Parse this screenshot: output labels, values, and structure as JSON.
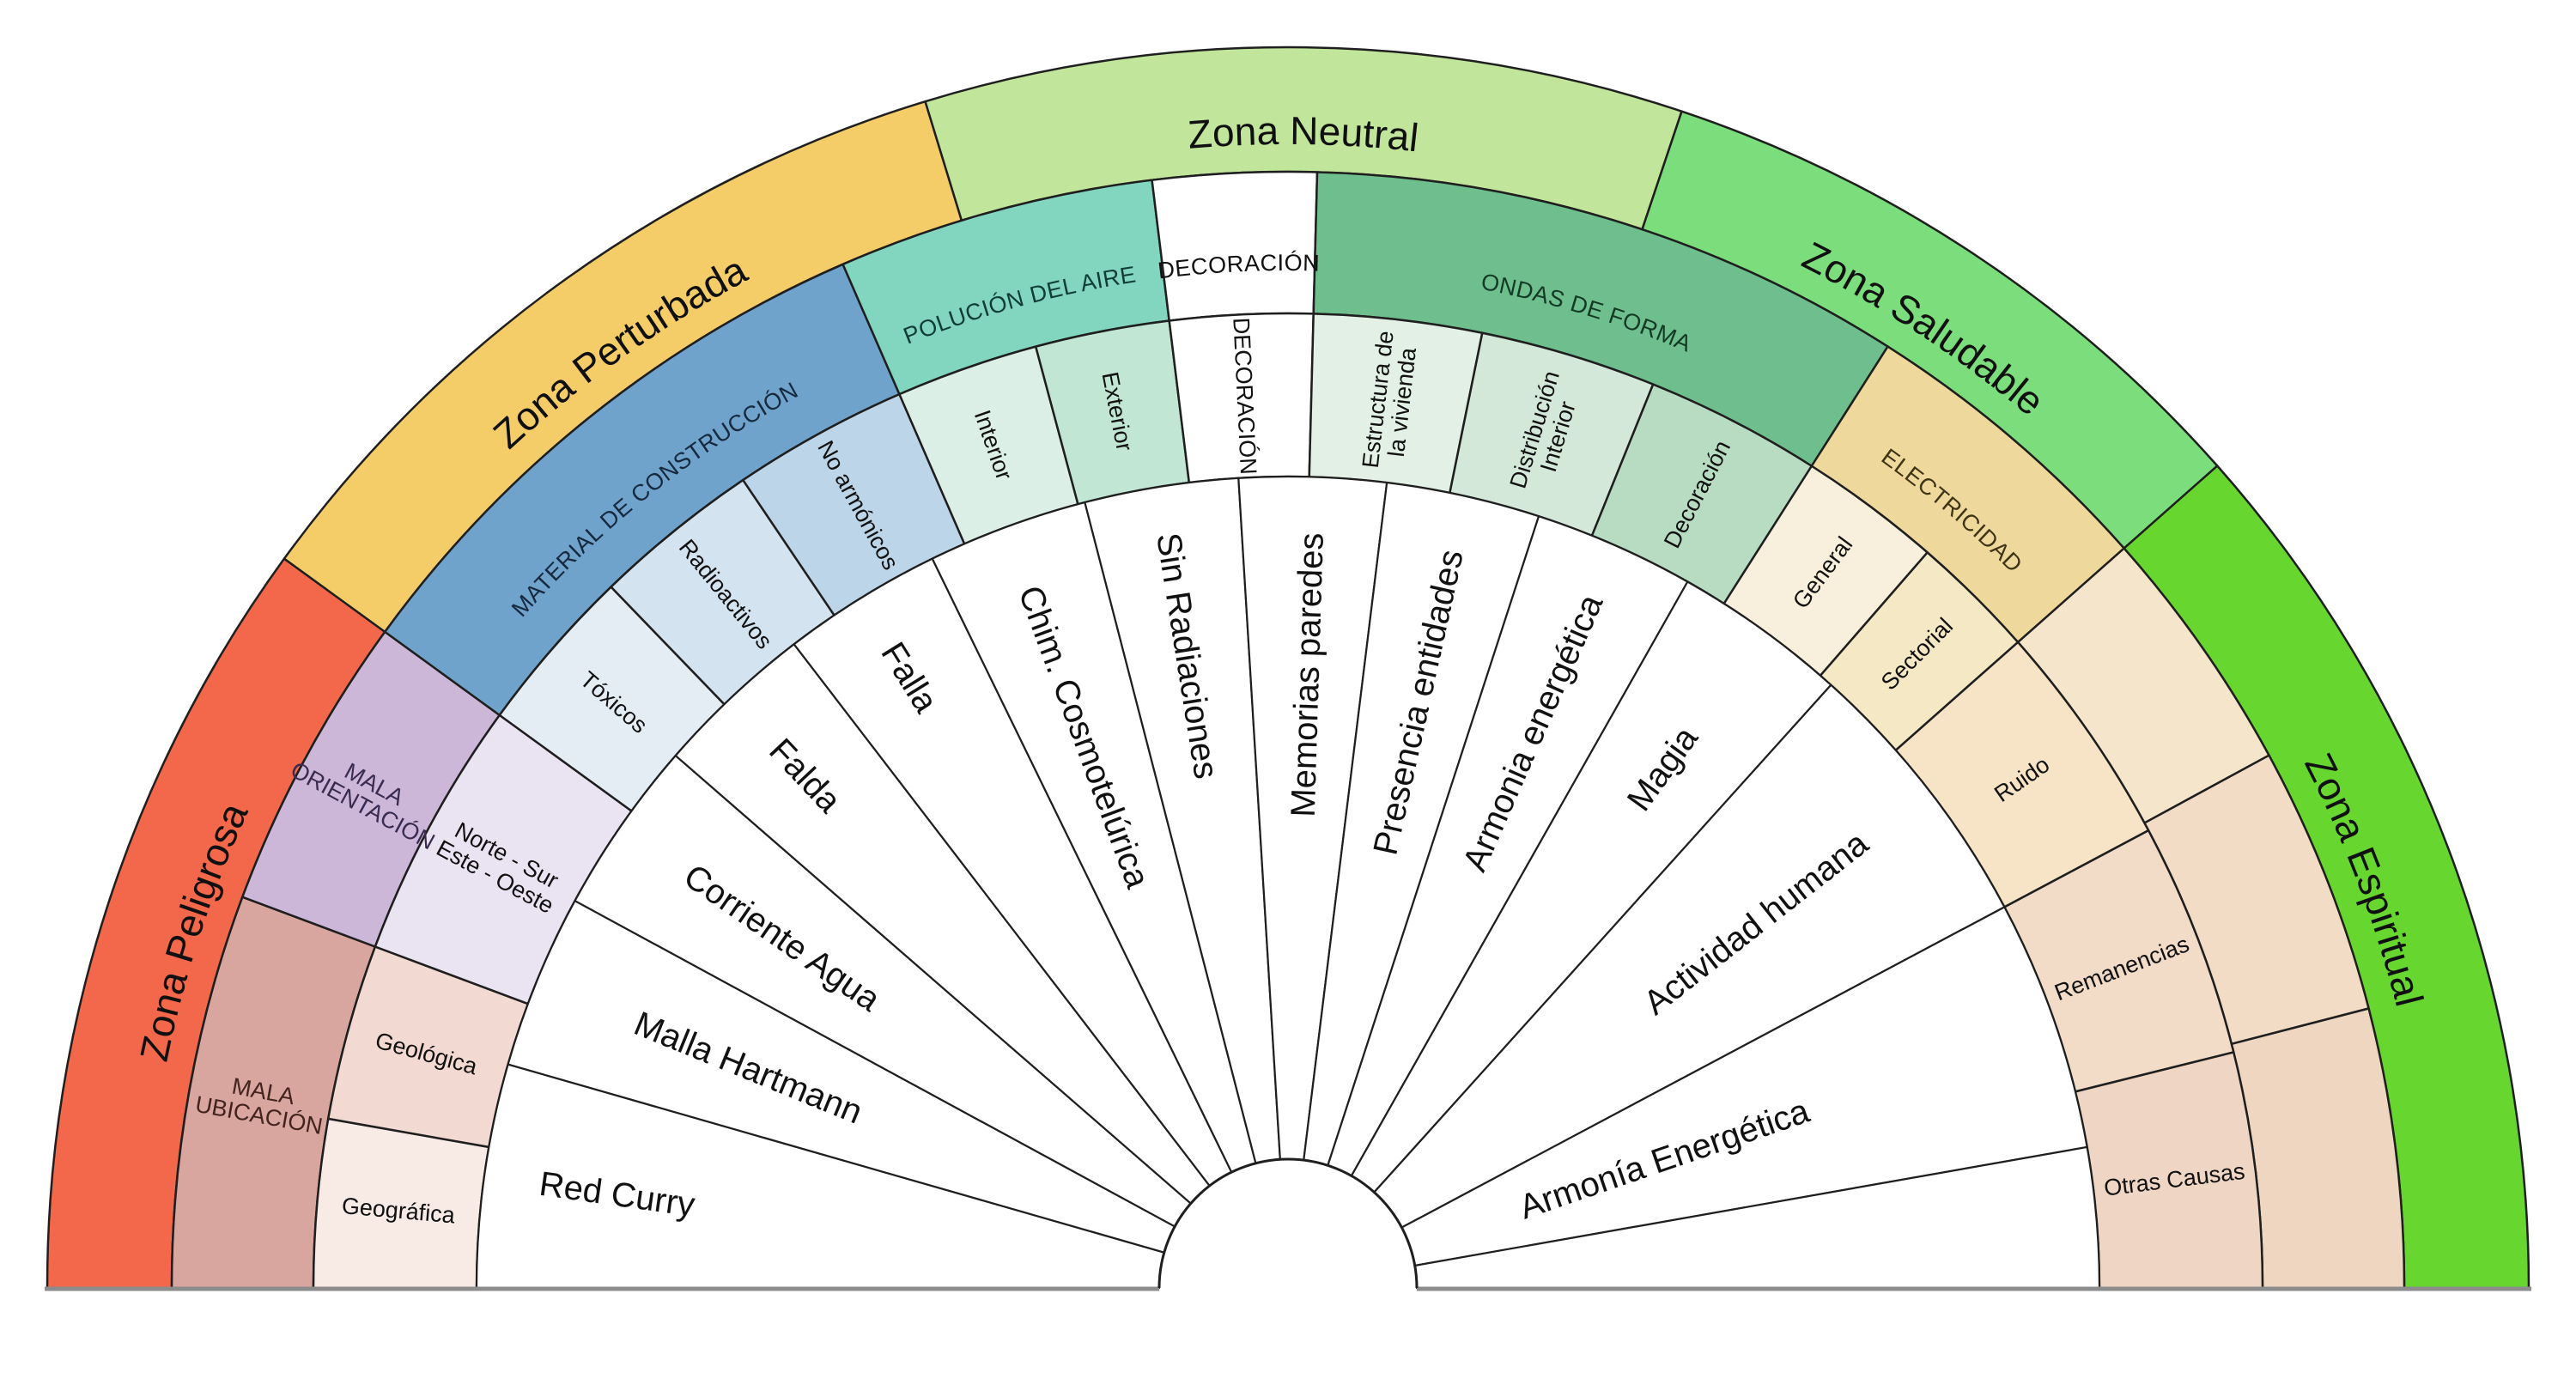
{
  "canvas": {
    "background": "#ffffff",
    "stroke": "#1f1f1f",
    "baseline_color": "#8c8c8c",
    "spoke_fill": "#ffffff"
  },
  "wheel": {
    "zones": [
      {
        "label": "Zona Peligrosa",
        "a1": 180,
        "a2": 144,
        "color": "#f3684a",
        "text": "#101010"
      },
      {
        "label": "Zona Perturbada",
        "a1": 144,
        "a2": 107,
        "color": "#f4cc68",
        "text": "#101010"
      },
      {
        "label": "Zona Neutral",
        "a1": 107,
        "a2": 71.5,
        "color": "#c1e59b",
        "text": "#101010"
      },
      {
        "label": "Zona Saludable",
        "a1": 71.5,
        "a2": 41.5,
        "color": "#7cdd7c",
        "text": "#101010"
      },
      {
        "label": "Zona Espiritual",
        "a1": 41.5,
        "a2": 0,
        "color": "#67d62f",
        "text": "#101010"
      }
    ],
    "categories": [
      {
        "label": "MALA UBICACIÓN",
        "lines": [
          "MALA",
          "UBICACIÓN"
        ],
        "a1": 180,
        "a2": 159.5,
        "color": "#d8a69e",
        "text": "#43231e",
        "mode": "radial"
      },
      {
        "label": "MALA ORIENTACIÓN",
        "lines": [
          "MALA",
          "ORIENTACIÓN"
        ],
        "a1": 159.5,
        "a2": 144,
        "color": "#ccb7d9",
        "text": "#3a2b50",
        "mode": "radial"
      },
      {
        "label": "MATERIAL DE CONSTRUCCIÓN",
        "a1": 144,
        "a2": 113.5,
        "color": "#6fa3cb",
        "text": "#16293f",
        "mode": "arc"
      },
      {
        "label": "POLUCIÓN DEL AIRE",
        "a1": 113.5,
        "a2": 97,
        "color": "#82d5bf",
        "text": "#0f3d35",
        "mode": "arc"
      },
      {
        "label": "DECORACIÓN",
        "a1": 97,
        "a2": 88.5,
        "color": "#ffffff",
        "text": "#111111",
        "mode": "arc"
      },
      {
        "label": "ONDAS DE FORMA",
        "a1": 88.5,
        "a2": 57.5,
        "color": "#6fbe8d",
        "text": "#123a24",
        "mode": "arc"
      },
      {
        "label": "ELECTRICIDAD",
        "a1": 57.5,
        "a2": 41.5,
        "color": "#eed89b",
        "text": "#3e3416",
        "mode": "arc"
      },
      {
        "label": "",
        "a1": 41.5,
        "a2": 28.5,
        "color": "#f5e5cb",
        "mode": "none"
      },
      {
        "label": "",
        "a1": 28.5,
        "a2": 14.5,
        "color": "#f2dcc5",
        "mode": "none"
      },
      {
        "label": "",
        "a1": 14.5,
        "a2": 0,
        "color": "#efd6c0",
        "mode": "none"
      }
    ],
    "subcategories": [
      {
        "label": "Geográfica",
        "a1": 180,
        "a2": 170,
        "color": "#f8eae5"
      },
      {
        "label": "Geológica",
        "a1": 170,
        "a2": 159.5,
        "color": "#f2d9d1"
      },
      {
        "label": "Norte - Sur Este - Oeste",
        "lines": [
          "Norte - Sur",
          "Este - Oeste"
        ],
        "a1": 159.5,
        "a2": 144,
        "color": "#eae3f1"
      },
      {
        "label": "Tóxicos",
        "a1": 144,
        "a2": 134,
        "color": "#e4ecf4"
      },
      {
        "label": "Radioactivos",
        "a1": 134,
        "a2": 124,
        "color": "#d4e3f0"
      },
      {
        "label": "No armónicos",
        "a1": 124,
        "a2": 113.5,
        "color": "#bdd5e9"
      },
      {
        "label": "Interior",
        "a1": 113.5,
        "a2": 105,
        "color": "#dcefe6"
      },
      {
        "label": "Exterior",
        "a1": 105,
        "a2": 97,
        "color": "#c2e6d4"
      },
      {
        "label": "DECORACIÓN",
        "a1": 97,
        "a2": 88.5,
        "color": "#ffffff"
      },
      {
        "label": "Estructura de la vivienda",
        "lines": [
          "Estructura de",
          "la vivienda"
        ],
        "a1": 88.5,
        "a2": 78.5,
        "color": "#e3f0e6"
      },
      {
        "label": "Distribución Interior",
        "lines": [
          "Distribución",
          "Interior"
        ],
        "a1": 78.5,
        "a2": 68,
        "color": "#d3e8d8"
      },
      {
        "label": "Decoración",
        "a1": 68,
        "a2": 57.5,
        "color": "#b8dcc2"
      },
      {
        "label": "General",
        "a1": 57.5,
        "a2": 49,
        "color": "#f8f0dc"
      },
      {
        "label": "Sectorial",
        "a1": 49,
        "a2": 41.5,
        "color": "#f5e8c5"
      },
      {
        "label": "Ruido",
        "a1": 41.5,
        "a2": 28,
        "color": "#f7e4c6"
      },
      {
        "label": "Remanencias",
        "a1": 28,
        "a2": 14,
        "color": "#f2dbc7"
      },
      {
        "label": "Otras Causas",
        "a1": 14,
        "a2": 0,
        "color": "#efd5c3"
      }
    ],
    "spokes": [
      {
        "label": "Red Curry",
        "a1": 180,
        "a2": 164,
        "r": 880
      },
      {
        "label": "Malla Hartmann",
        "a1": 164,
        "a2": 151.5,
        "r": 820
      },
      {
        "label": "Corriente Agua",
        "a1": 151.5,
        "a2": 139,
        "r": 850
      },
      {
        "label": "Falda",
        "a1": 139,
        "a2": 127.5,
        "r": 870
      },
      {
        "label": "Falla",
        "a1": 127.5,
        "a2": 116,
        "r": 880
      },
      {
        "label": "Chim. Cosmotelúrica",
        "a1": 116,
        "a2": 104.5,
        "r": 870
      },
      {
        "label": "Sin Radiaciones",
        "a1": 104.5,
        "a2": 93.5,
        "r": 890
      },
      {
        "label": "Memorias paredes",
        "a1": 93.5,
        "a2": 83,
        "r": 880
      },
      {
        "label": "Presencia entidades",
        "a1": 83,
        "a2": 72,
        "r": 880
      },
      {
        "label": "Armonia energética",
        "a1": 72,
        "a2": 60.5,
        "r": 880
      },
      {
        "label": "Magia",
        "a1": 60.5,
        "a2": 48,
        "r": 800
      },
      {
        "label": "Actividad humana",
        "a1": 48,
        "a2": 28,
        "r": 850
      },
      {
        "label": "Armonía Energética",
        "a1": 28,
        "a2": 10,
        "r": 640
      },
      {
        "label": "",
        "a1": 10,
        "a2": 0,
        "r": 0
      }
    ]
  }
}
